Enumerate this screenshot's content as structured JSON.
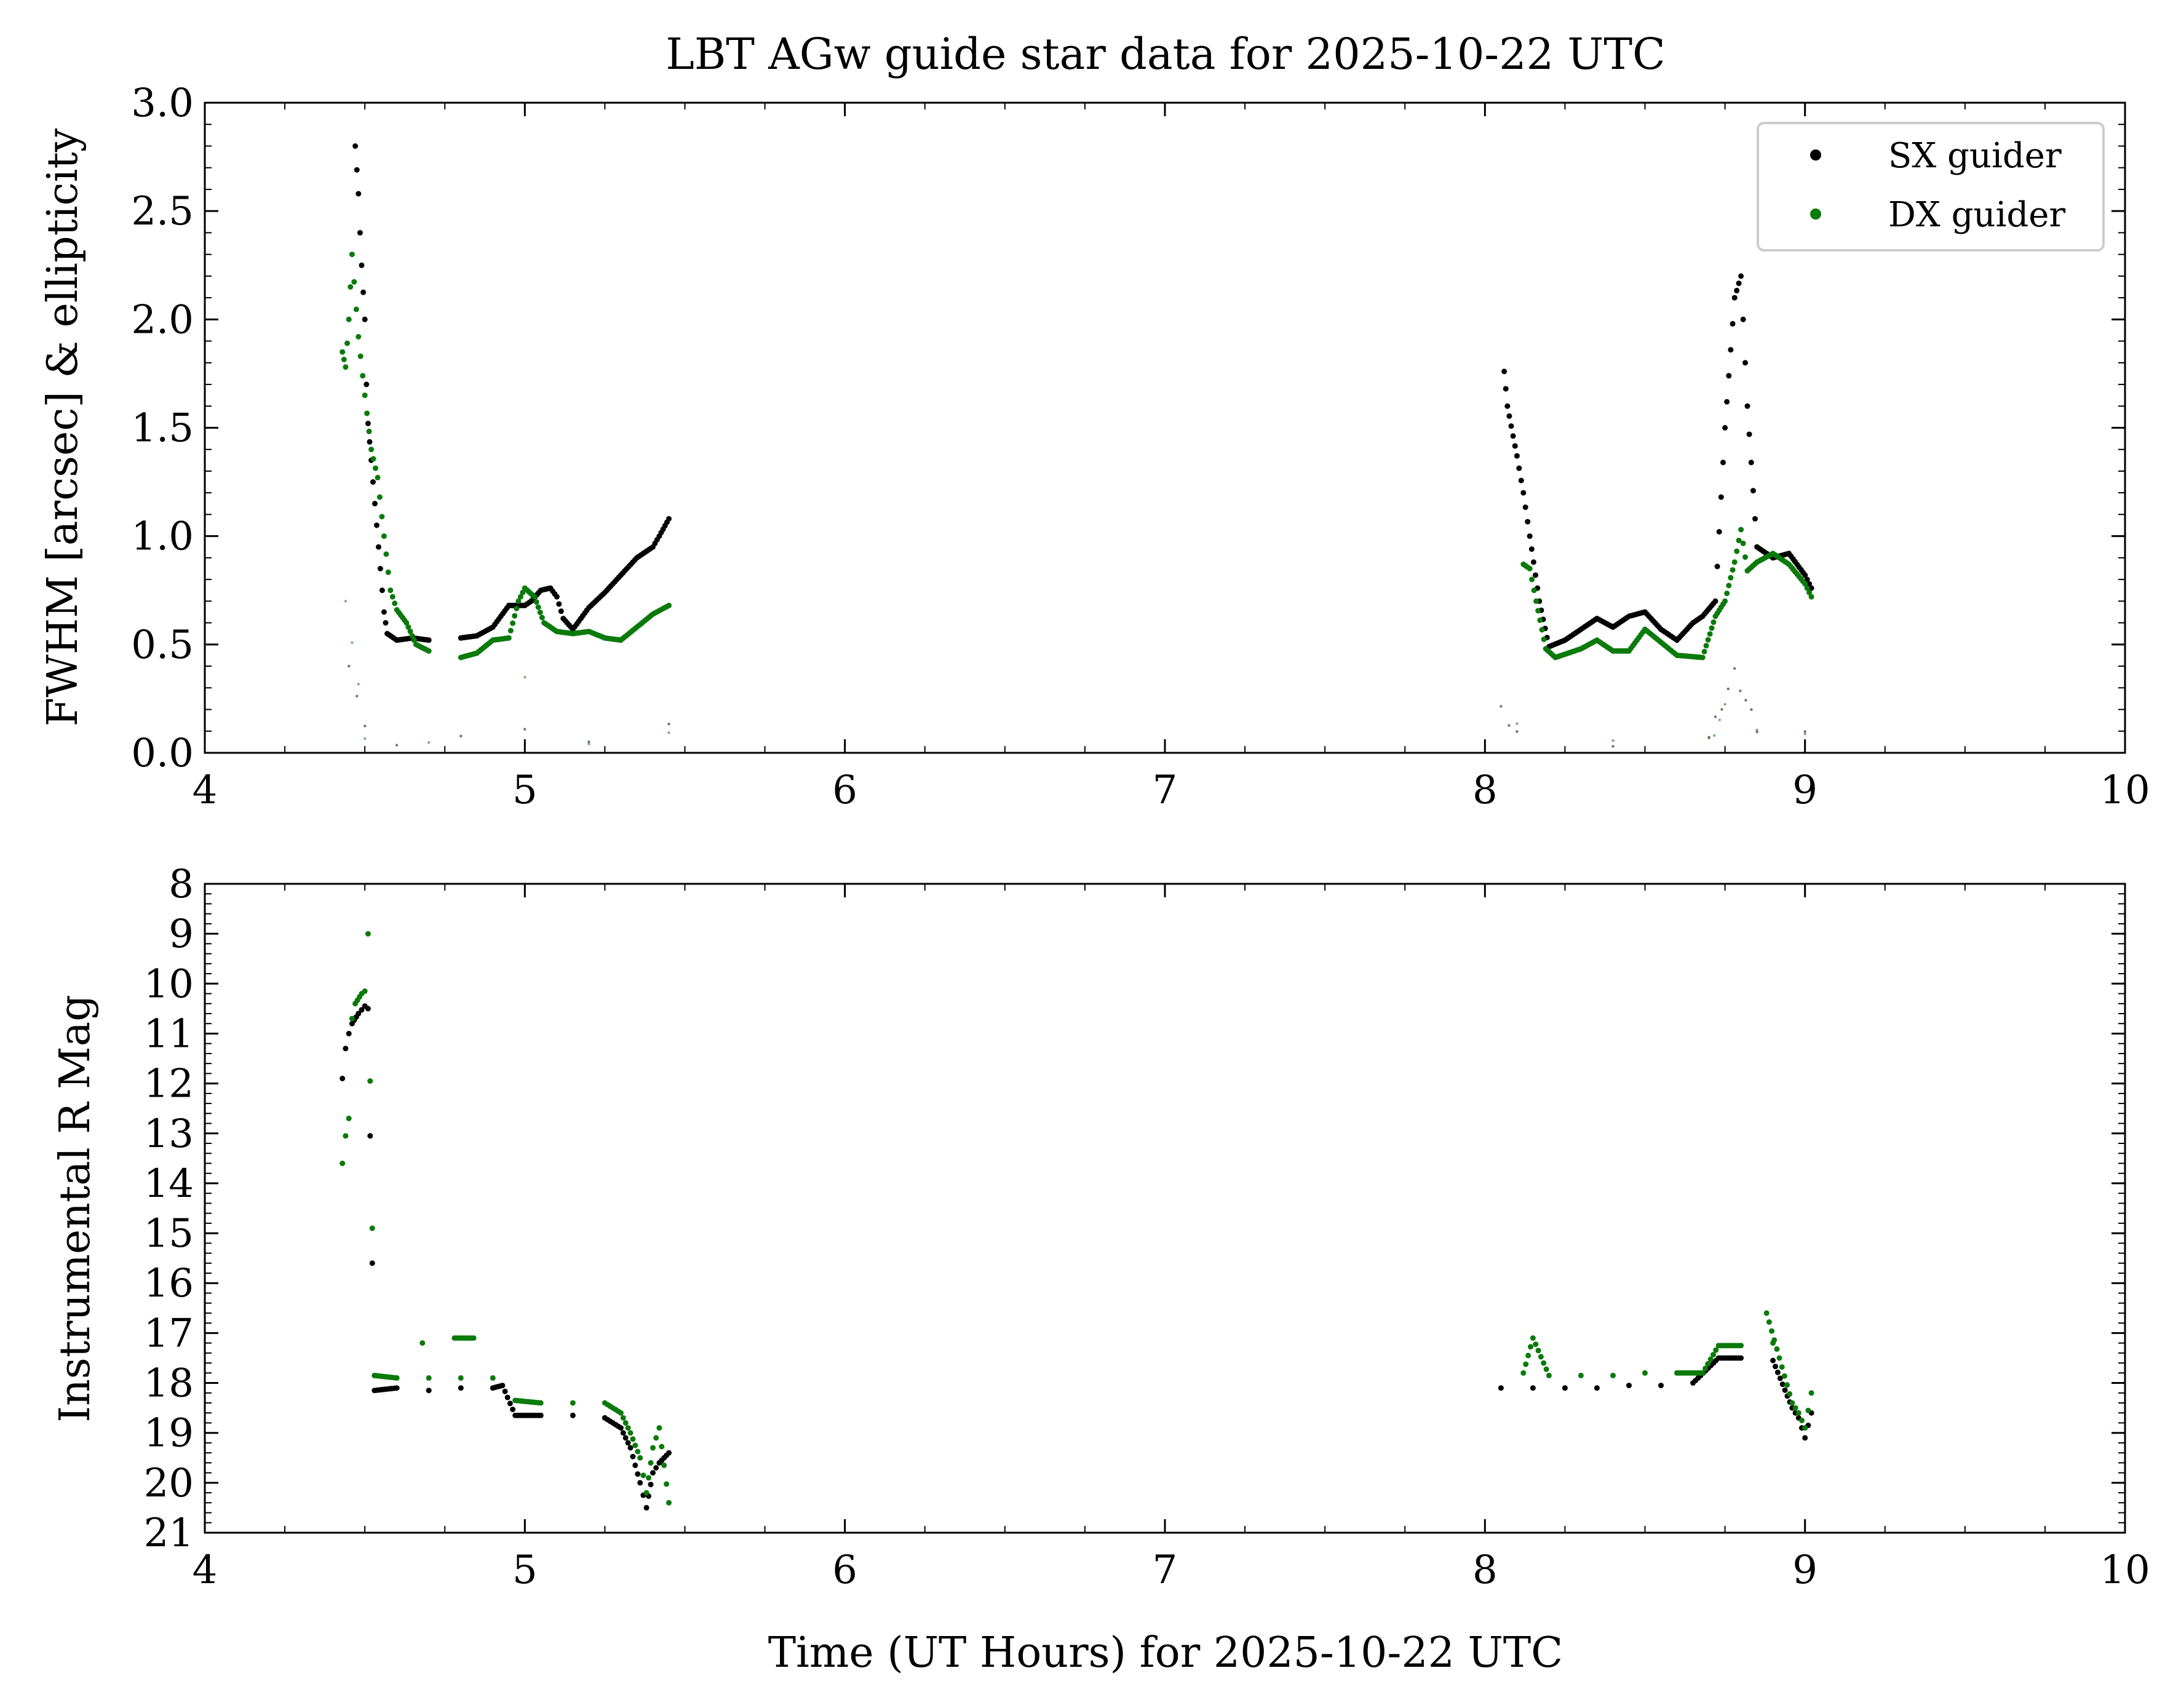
{
  "title": "LBT AGw guide star data for 2025-10-22 UTC",
  "colors": {
    "sx": "#000000",
    "dx": "#0a7a0a",
    "axis": "#000000",
    "legend_border": "#cccccc"
  },
  "chart_data": [
    {
      "type": "scatter",
      "ylabel": "FWHM [arcsec] & ellipticity",
      "xlim": [
        4,
        10
      ],
      "ylim": [
        0.0,
        3.0
      ],
      "xticks": [
        "4",
        "5",
        "6",
        "7",
        "8",
        "9",
        "10"
      ],
      "yticks": [
        "0.0",
        "0.5",
        "1.0",
        "1.5",
        "2.0",
        "2.5",
        "3.0"
      ],
      "legend": {
        "position": "top-right",
        "entries": [
          "SX guider",
          "DX guider"
        ]
      },
      "series": [
        {
          "name": "SX guider",
          "color": "#000000",
          "fwhm": [
            [
              4.47,
              2.8
            ],
            [
              4.48,
              2.58
            ],
            [
              4.485,
              2.4
            ],
            [
              4.49,
              2.25
            ],
            [
              4.5,
              2.0
            ],
            [
              4.505,
              1.7
            ],
            [
              4.51,
              1.52
            ],
            [
              4.52,
              1.35
            ],
            [
              4.56,
              0.65
            ],
            [
              4.57,
              0.55
            ],
            [
              4.6,
              0.52
            ],
            [
              4.65,
              0.53
            ],
            [
              4.7,
              0.52
            ],
            [
              4.8,
              0.53
            ],
            [
              4.85,
              0.54
            ],
            [
              4.9,
              0.58
            ],
            [
              4.95,
              0.68
            ],
            [
              5.0,
              0.68
            ],
            [
              5.02,
              0.7
            ],
            [
              5.05,
              0.75
            ],
            [
              5.08,
              0.76
            ],
            [
              5.1,
              0.72
            ],
            [
              5.12,
              0.62
            ],
            [
              5.15,
              0.57
            ],
            [
              5.2,
              0.67
            ],
            [
              5.25,
              0.74
            ],
            [
              5.3,
              0.82
            ],
            [
              5.35,
              0.9
            ],
            [
              5.4,
              0.95
            ],
            [
              5.42,
              1.0
            ],
            [
              5.45,
              1.08
            ],
            [
              8.06,
              1.76
            ],
            [
              8.07,
              1.6
            ],
            [
              8.1,
              1.37
            ],
            [
              8.12,
              1.2
            ],
            [
              8.14,
              1.0
            ],
            [
              8.17,
              0.7
            ],
            [
              8.2,
              0.49
            ],
            [
              8.25,
              0.52
            ],
            [
              8.3,
              0.57
            ],
            [
              8.35,
              0.62
            ],
            [
              8.4,
              0.58
            ],
            [
              8.45,
              0.63
            ],
            [
              8.5,
              0.65
            ],
            [
              8.55,
              0.57
            ],
            [
              8.6,
              0.52
            ],
            [
              8.65,
              0.6
            ],
            [
              8.68,
              0.63
            ],
            [
              8.72,
              0.7
            ],
            [
              8.75,
              1.5
            ],
            [
              8.78,
              2.1
            ],
            [
              8.8,
              2.2
            ],
            [
              8.82,
              1.6
            ],
            [
              8.85,
              0.95
            ],
            [
              8.9,
              0.9
            ],
            [
              8.95,
              0.92
            ],
            [
              9.0,
              0.82
            ],
            [
              9.02,
              0.76
            ]
          ],
          "ellipticity": [
            [
              4.45,
              0.42
            ],
            [
              4.5,
              0.1
            ],
            [
              4.6,
              0.05
            ],
            [
              4.8,
              0.07
            ],
            [
              5.0,
              0.08
            ],
            [
              5.2,
              0.06
            ],
            [
              5.45,
              0.12
            ],
            [
              8.05,
              0.18
            ],
            [
              8.1,
              0.08
            ],
            [
              8.4,
              0.05
            ],
            [
              8.7,
              0.07
            ],
            [
              8.78,
              0.36
            ],
            [
              8.85,
              0.1
            ],
            [
              9.0,
              0.08
            ]
          ]
        },
        {
          "name": "DX guider",
          "color": "#0a7a0a",
          "fwhm": [
            [
              4.43,
              1.85
            ],
            [
              4.44,
              1.78
            ],
            [
              4.45,
              2.0
            ],
            [
              4.46,
              2.3
            ],
            [
              4.48,
              1.92
            ],
            [
              4.5,
              1.65
            ],
            [
              4.52,
              1.4
            ],
            [
              4.54,
              1.27
            ],
            [
              4.56,
              1.0
            ],
            [
              4.58,
              0.75
            ],
            [
              4.6,
              0.66
            ],
            [
              4.63,
              0.6
            ],
            [
              4.66,
              0.5
            ],
            [
              4.7,
              0.47
            ],
            [
              4.8,
              0.44
            ],
            [
              4.85,
              0.46
            ],
            [
              4.9,
              0.52
            ],
            [
              4.95,
              0.53
            ],
            [
              4.98,
              0.7
            ],
            [
              5.0,
              0.76
            ],
            [
              5.03,
              0.72
            ],
            [
              5.06,
              0.6
            ],
            [
              5.1,
              0.56
            ],
            [
              5.15,
              0.55
            ],
            [
              5.2,
              0.56
            ],
            [
              5.25,
              0.53
            ],
            [
              5.3,
              0.52
            ],
            [
              5.35,
              0.58
            ],
            [
              5.4,
              0.64
            ],
            [
              5.45,
              0.68
            ],
            [
              8.12,
              0.87
            ],
            [
              8.14,
              0.85
            ],
            [
              8.16,
              0.7
            ],
            [
              8.19,
              0.48
            ],
            [
              8.22,
              0.44
            ],
            [
              8.3,
              0.48
            ],
            [
              8.35,
              0.52
            ],
            [
              8.4,
              0.47
            ],
            [
              8.45,
              0.47
            ],
            [
              8.5,
              0.57
            ],
            [
              8.55,
              0.51
            ],
            [
              8.6,
              0.45
            ],
            [
              8.68,
              0.44
            ],
            [
              8.72,
              0.63
            ],
            [
              8.75,
              0.7
            ],
            [
              8.78,
              0.88
            ],
            [
              8.8,
              1.03
            ],
            [
              8.82,
              0.84
            ],
            [
              8.85,
              0.88
            ],
            [
              8.9,
              0.92
            ],
            [
              8.95,
              0.87
            ],
            [
              9.0,
              0.78
            ],
            [
              9.02,
              0.72
            ]
          ],
          "ellipticity": [
            [
              4.44,
              0.72
            ],
            [
              4.5,
              0.08
            ],
            [
              4.7,
              0.04
            ],
            [
              5.0,
              0.32
            ],
            [
              5.2,
              0.05
            ],
            [
              5.45,
              0.08
            ],
            [
              8.1,
              0.1
            ],
            [
              8.4,
              0.06
            ],
            [
              8.7,
              0.05
            ],
            [
              8.75,
              0.2
            ],
            [
              8.85,
              0.12
            ],
            [
              9.0,
              0.08
            ]
          ]
        }
      ]
    },
    {
      "type": "scatter",
      "xlabel": "Time (UT Hours) for 2025-10-22 UTC",
      "ylabel": "Instrumental R Mag",
      "xlim": [
        4,
        10
      ],
      "ylim": [
        21,
        8
      ],
      "inverted_y": true,
      "xticks": [
        "4",
        "5",
        "6",
        "7",
        "8",
        "9",
        "10"
      ],
      "yticks": [
        "8",
        "9",
        "10",
        "11",
        "12",
        "13",
        "14",
        "15",
        "16",
        "17",
        "18",
        "19",
        "20",
        "21"
      ],
      "series": [
        {
          "name": "SX guider",
          "color": "#000000",
          "mag": [
            [
              4.43,
              11.9
            ],
            [
              4.44,
              11.3
            ],
            [
              4.45,
              11.0
            ],
            [
              4.46,
              10.8
            ],
            [
              4.48,
              10.6
            ],
            [
              4.5,
              10.45
            ],
            [
              4.51,
              10.5
            ],
            [
              4.53,
              18.15
            ],
            [
              4.6,
              18.1
            ],
            [
              4.7,
              18.15
            ],
            [
              4.8,
              18.1
            ],
            [
              4.9,
              18.1
            ],
            [
              4.93,
              18.05
            ],
            [
              4.97,
              18.65
            ],
            [
              5.05,
              18.65
            ],
            [
              5.15,
              18.65
            ],
            [
              5.25,
              18.7
            ],
            [
              5.3,
              18.9
            ],
            [
              5.33,
              19.3
            ],
            [
              5.36,
              20.0
            ],
            [
              5.38,
              20.5
            ],
            [
              5.4,
              19.8
            ],
            [
              5.42,
              19.6
            ],
            [
              5.45,
              19.4
            ],
            [
              8.05,
              18.1
            ],
            [
              8.15,
              18.1
            ],
            [
              8.25,
              18.1
            ],
            [
              8.35,
              18.1
            ],
            [
              8.45,
              18.05
            ],
            [
              8.55,
              18.05
            ],
            [
              8.65,
              18.0
            ],
            [
              8.73,
              17.5
            ],
            [
              8.8,
              17.5
            ],
            [
              8.9,
              17.55
            ],
            [
              8.96,
              18.5
            ],
            [
              8.98,
              18.7
            ],
            [
              9.0,
              19.1
            ],
            [
              9.02,
              18.6
            ]
          ]
        },
        {
          "name": "DX guider",
          "color": "#0a7a0a",
          "mag": [
            [
              4.43,
              13.6
            ],
            [
              4.44,
              13.05
            ],
            [
              4.45,
              12.7
            ],
            [
              4.46,
              10.7
            ],
            [
              4.47,
              10.4
            ],
            [
              4.49,
              10.2
            ],
            [
              4.5,
              10.15
            ],
            [
              4.51,
              9.0
            ],
            [
              4.53,
              17.85
            ],
            [
              4.6,
              17.9
            ],
            [
              4.7,
              17.9
            ],
            [
              4.8,
              17.9
            ],
            [
              4.9,
              17.9
            ],
            [
              4.68,
              17.2
            ],
            [
              4.78,
              17.1
            ],
            [
              4.84,
              17.1
            ],
            [
              4.97,
              18.35
            ],
            [
              5.05,
              18.4
            ],
            [
              5.15,
              18.4
            ],
            [
              5.25,
              18.4
            ],
            [
              5.3,
              18.6
            ],
            [
              5.33,
              19.0
            ],
            [
              5.36,
              19.5
            ],
            [
              5.38,
              20.2
            ],
            [
              5.4,
              19.3
            ],
            [
              5.42,
              18.9
            ],
            [
              5.45,
              20.4
            ],
            [
              8.12,
              17.8
            ],
            [
              8.15,
              17.1
            ],
            [
              8.2,
              17.85
            ],
            [
              8.3,
              17.85
            ],
            [
              8.4,
              17.85
            ],
            [
              8.5,
              17.8
            ],
            [
              8.6,
              17.8
            ],
            [
              8.68,
              17.8
            ],
            [
              8.73,
              17.25
            ],
            [
              8.8,
              17.25
            ],
            [
              8.9,
              17.2
            ],
            [
              8.88,
              16.6
            ],
            [
              8.96,
              18.4
            ],
            [
              8.98,
              18.6
            ],
            [
              9.0,
              18.9
            ],
            [
              9.02,
              18.2
            ]
          ]
        }
      ]
    }
  ]
}
